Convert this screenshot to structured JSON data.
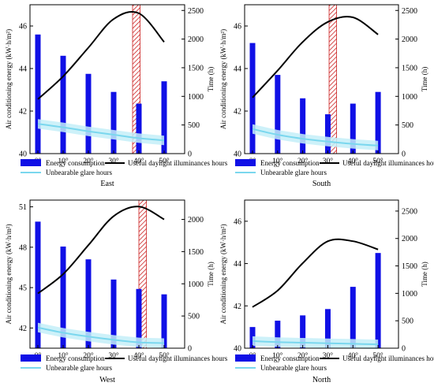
{
  "chart_data": [
    {
      "type": "bar",
      "caption": "East",
      "categories": [
        "0°",
        "10°",
        "20°",
        "30°",
        "40°",
        "50°"
      ],
      "ylabel": "Air conditioning energy (kW·h/m²)",
      "y2label": "Time (h)",
      "ylim": [
        40,
        47
      ],
      "y2lim": [
        0,
        2600
      ],
      "yticks": [
        "40",
        "42",
        "44",
        "46"
      ],
      "y2ticks": [
        "0",
        "500",
        "1000",
        "1500",
        "2000",
        "2500"
      ],
      "series": [
        {
          "name": "Energy consumption",
          "axis": "left",
          "values": [
            45.6,
            44.6,
            43.75,
            42.9,
            42.35,
            43.4
          ]
        },
        {
          "name": "Useful daylight illuminances hours",
          "axis": "right",
          "values": [
            950,
            1350,
            1850,
            2350,
            2450,
            1950
          ]
        },
        {
          "name": "Unbearable glare hours",
          "axis": "right",
          "values": [
            520,
            460,
            390,
            330,
            270,
            230
          ]
        }
      ],
      "highlight_band": [
        37.5,
        40.5
      ]
    },
    {
      "type": "bar",
      "caption": "South",
      "categories": [
        "0°",
        "10°",
        "20°",
        "30°",
        "40°",
        "50°"
      ],
      "ylabel": "Air conditioning energy (kW·h/m²)",
      "y2label": "Time (h)",
      "ylim": [
        40,
        47
      ],
      "y2lim": [
        0,
        2600
      ],
      "yticks": [
        "40",
        "42",
        "44",
        "46"
      ],
      "y2ticks": [
        "0",
        "500",
        "1000",
        "1500",
        "2000",
        "2500"
      ],
      "series": [
        {
          "name": "Energy consumption",
          "axis": "left",
          "values": [
            45.2,
            43.7,
            42.6,
            41.85,
            42.35,
            42.9
          ]
        },
        {
          "name": "Useful daylight illuminances hours",
          "axis": "right",
          "values": [
            980,
            1450,
            1950,
            2300,
            2380,
            2080
          ]
        },
        {
          "name": "Unbearable glare hours",
          "axis": "right",
          "values": [
            430,
            330,
            260,
            210,
            170,
            140
          ]
        }
      ],
      "highlight_band": [
        30.5,
        33.5
      ]
    },
    {
      "type": "bar",
      "caption": "West",
      "categories": [
        "0°",
        "10°",
        "20°",
        "30°",
        "40°",
        "50°"
      ],
      "ylabel": "Air conditioning energy (kW·h/m²)",
      "y2label": "Time (h)",
      "ylim": [
        40.5,
        51.5
      ],
      "y2lim": [
        0,
        2300
      ],
      "yticks": [
        "42",
        "45",
        "48",
        "51"
      ],
      "y2ticks": [
        "0",
        "500",
        "1000",
        "1500",
        "2000"
      ],
      "series": [
        {
          "name": "Energy consumption",
          "axis": "left",
          "values": [
            49.9,
            48.05,
            47.1,
            45.6,
            44.9,
            44.5
          ]
        },
        {
          "name": "Useful daylight illuminances hours",
          "axis": "right",
          "values": [
            850,
            1150,
            1600,
            2050,
            2200,
            2000
          ]
        },
        {
          "name": "Unbearable glare hours",
          "axis": "right",
          "values": [
            320,
            240,
            180,
            130,
            90,
            80
          ]
        }
      ],
      "highlight_band": [
        40,
        43
      ]
    },
    {
      "type": "bar",
      "caption": "North",
      "categories": [
        "0°",
        "10°",
        "20°",
        "30°",
        "40°",
        "50°"
      ],
      "ylabel": "Air conditioning energy (kW·h/m²)",
      "y2label": "Time (h)",
      "ylim": [
        40,
        47
      ],
      "y2lim": [
        0,
        2700
      ],
      "yticks": [
        "40",
        "42",
        "44",
        "46"
      ],
      "y2ticks": [
        "0",
        "500",
        "1000",
        "1500",
        "2000",
        "2500"
      ],
      "series": [
        {
          "name": "Energy consumption",
          "axis": "left",
          "values": [
            41.0,
            41.3,
            41.55,
            41.85,
            42.9,
            44.5
          ]
        },
        {
          "name": "Useful daylight illuminances hours",
          "axis": "right",
          "values": [
            750,
            1050,
            1550,
            1950,
            1950,
            1800
          ]
        },
        {
          "name": "Unbearable glare hours",
          "axis": "right",
          "values": [
            130,
            110,
            100,
            90,
            80,
            70
          ]
        }
      ]
    }
  ],
  "legend": {
    "energy": "Energy consumption",
    "udi": "Useful daylight illuminances hours",
    "glare": "Unbearable glare hours"
  },
  "colors": {
    "bars": "#1010e6",
    "udi_line": "#000000",
    "glare_line": "#7ad7ee",
    "glare_band": "#c4eef8",
    "highlight_hatch": "#cc2222"
  }
}
